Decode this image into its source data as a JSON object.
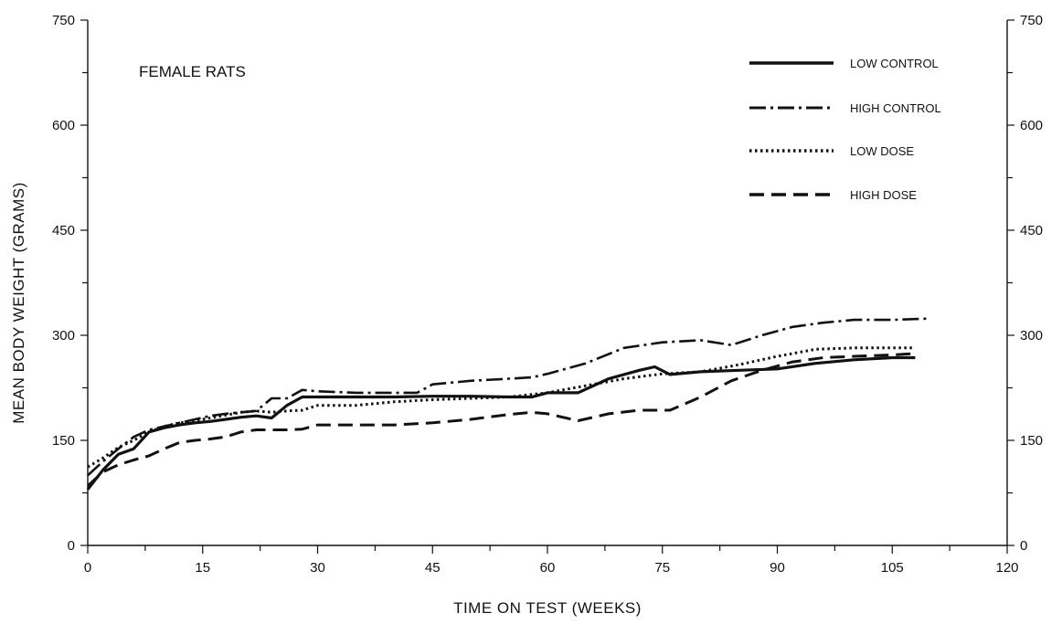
{
  "chart_data": {
    "type": "line",
    "title": "",
    "panel_label": "FEMALE RATS",
    "xlabel": "TIME ON TEST (WEEKS)",
    "ylabel": "MEAN BODY WEIGHT (GRAMS)",
    "xlim": [
      0,
      120
    ],
    "ylim": [
      0,
      750
    ],
    "x_ticks": [
      0,
      15,
      30,
      45,
      60,
      75,
      90,
      105,
      120
    ],
    "y_ticks": [
      0,
      150,
      300,
      450,
      600,
      750
    ],
    "grid": false,
    "legend_position": "top-right",
    "series": [
      {
        "name": "LOW CONTROL",
        "style": "solid",
        "x": [
          0,
          2,
          4,
          6,
          8,
          10,
          12,
          14,
          16,
          18,
          20,
          22,
          24,
          26,
          28,
          30,
          35,
          40,
          45,
          50,
          55,
          58,
          60,
          64,
          68,
          72,
          74,
          76,
          80,
          85,
          90,
          95,
          100,
          105,
          108
        ],
        "y": [
          80,
          108,
          130,
          138,
          162,
          168,
          172,
          175,
          177,
          180,
          183,
          185,
          182,
          200,
          212,
          212,
          212,
          212,
          213,
          213,
          212,
          212,
          218,
          218,
          238,
          250,
          255,
          244,
          248,
          250,
          252,
          260,
          265,
          268,
          268
        ]
      },
      {
        "name": "HIGH CONTROL",
        "style": "dash-dot",
        "x": [
          0,
          2,
          4,
          6,
          8,
          10,
          12,
          14,
          16,
          18,
          20,
          22,
          24,
          26,
          28,
          30,
          35,
          40,
          43,
          45,
          50,
          55,
          58,
          60,
          65,
          70,
          75,
          80,
          84,
          88,
          92,
          96,
          100,
          105,
          110
        ],
        "y": [
          100,
          120,
          138,
          155,
          165,
          170,
          175,
          180,
          185,
          188,
          190,
          192,
          210,
          210,
          222,
          220,
          218,
          218,
          218,
          230,
          235,
          238,
          240,
          245,
          260,
          282,
          290,
          293,
          286,
          300,
          312,
          318,
          322,
          322,
          324
        ]
      },
      {
        "name": "LOW DOSE",
        "style": "dotted",
        "x": [
          0,
          2,
          4,
          6,
          8,
          10,
          12,
          14,
          16,
          18,
          20,
          22,
          24,
          26,
          28,
          30,
          35,
          40,
          45,
          50,
          55,
          60,
          65,
          70,
          75,
          80,
          85,
          90,
          95,
          100,
          105,
          108
        ],
        "y": [
          112,
          125,
          140,
          150,
          162,
          170,
          175,
          178,
          182,
          186,
          190,
          192,
          190,
          192,
          193,
          200,
          200,
          205,
          208,
          210,
          212,
          218,
          228,
          238,
          245,
          248,
          258,
          270,
          280,
          282,
          282,
          282
        ]
      },
      {
        "name": "HIGH DOSE",
        "style": "dashed",
        "x": [
          0,
          2,
          4,
          6,
          8,
          10,
          12,
          14,
          16,
          18,
          20,
          22,
          24,
          26,
          28,
          30,
          35,
          40,
          45,
          50,
          55,
          58,
          60,
          64,
          68,
          72,
          76,
          80,
          84,
          88,
          92,
          96,
          100,
          105,
          108
        ],
        "y": [
          85,
          105,
          115,
          122,
          128,
          138,
          147,
          150,
          152,
          155,
          162,
          165,
          165,
          165,
          166,
          172,
          172,
          172,
          175,
          180,
          187,
          190,
          188,
          178,
          188,
          193,
          193,
          212,
          235,
          250,
          262,
          268,
          270,
          272,
          274
        ]
      }
    ]
  }
}
